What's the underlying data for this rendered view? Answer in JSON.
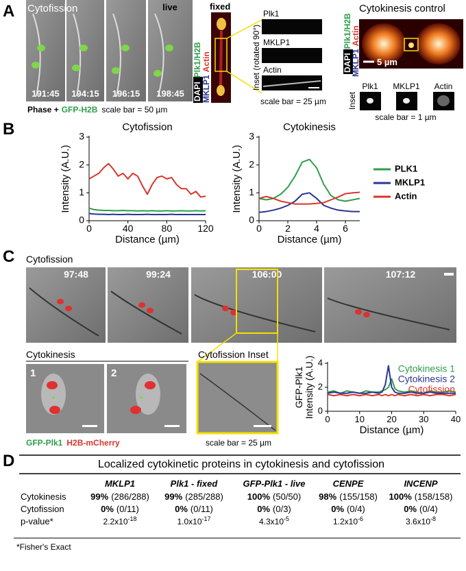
{
  "panel_a": {
    "letter": "A",
    "title": "Cytofission",
    "live": "live",
    "times": [
      "191:45",
      "194:15",
      "196:15",
      "198:45"
    ],
    "caption_phase": "Phase +",
    "caption_h2b": "GFP-H2B",
    "caption_scale": "scale bar = 50 µm",
    "fixed": "fixed",
    "stain": {
      "dapi": "DAPI",
      "plk1": "Plk1/H2B",
      "mklp1": "MKLP1",
      "actin": "Actin"
    },
    "inset_title": "Inset (rotated 90°)",
    "inset_labels": [
      "Plk1",
      "MKLP1",
      "Actin"
    ],
    "inset_scale": "scale bar = 25 µm",
    "control_title": "Cytokinesis control",
    "control_stain": {
      "dapi": "DAPI",
      "plk1": "Plk1/H2B",
      "mklp1": "MKLP1",
      "actin": "Actin"
    },
    "control_scale": "5 µm",
    "control_inset": "Inset",
    "control_inset_labels": [
      "Plk1",
      "MKLP1",
      "Actin"
    ],
    "control_inset_scale": "scale bar = 1 µm"
  },
  "panel_b": {
    "letter": "B"
  },
  "chart_data": [
    {
      "type": "line",
      "title": "Cytofission",
      "xlabel": "Distance (µm)",
      "ylabel": "Intensity (A.U.)",
      "x": [
        0,
        5,
        10,
        15,
        20,
        25,
        30,
        35,
        40,
        45,
        50,
        55,
        60,
        65,
        70,
        75,
        80,
        85,
        90,
        95,
        100,
        105,
        110,
        115,
        120
      ],
      "xlim": [
        0,
        120
      ],
      "xticks": [
        0,
        40,
        80,
        120
      ],
      "ylim": [
        0,
        3
      ],
      "yticks": [
        0,
        1,
        2,
        3
      ],
      "series": [
        {
          "color": "#2e9e4a",
          "values": [
            0.45,
            0.4,
            0.38,
            0.37,
            0.37,
            0.36,
            0.36,
            0.37,
            0.36,
            0.36,
            0.35,
            0.36,
            0.35,
            0.36,
            0.35,
            0.35,
            0.36,
            0.35,
            0.35,
            0.36,
            0.35,
            0.35,
            0.36,
            0.35,
            0.36
          ]
        },
        {
          "color": "#2a3590",
          "values": [
            0.26,
            0.24,
            0.23,
            0.23,
            0.22,
            0.23,
            0.22,
            0.22,
            0.23,
            0.22,
            0.22,
            0.22,
            0.23,
            0.22,
            0.22,
            0.22,
            0.22,
            0.23,
            0.22,
            0.22,
            0.22,
            0.22,
            0.22,
            0.22,
            0.22
          ]
        },
        {
          "color": "#d9342b",
          "values": [
            1.5,
            1.6,
            1.7,
            1.9,
            2.05,
            1.85,
            1.6,
            1.7,
            1.5,
            1.7,
            1.6,
            1.25,
            0.95,
            1.3,
            1.55,
            1.6,
            1.5,
            1.55,
            1.3,
            1.15,
            1.15,
            0.95,
            1.05,
            0.85,
            0.88
          ]
        }
      ]
    },
    {
      "type": "line",
      "title": "Cytokinesis",
      "xlabel": "Distance (µm)",
      "ylabel": "Intensity (A.U.)",
      "x": [
        0,
        0.5,
        1,
        1.5,
        2,
        2.5,
        3,
        3.5,
        4,
        4.5,
        5,
        5.5,
        6,
        6.5,
        7
      ],
      "xlim": [
        0,
        7
      ],
      "xticks": [
        0,
        2,
        4,
        6
      ],
      "ylim": [
        0,
        3
      ],
      "yticks": [
        0,
        1,
        2,
        3
      ],
      "series": [
        {
          "name": "PLK1",
          "color": "#2e9e4a",
          "values": [
            0.8,
            0.75,
            0.8,
            0.95,
            1.2,
            1.6,
            2.1,
            2.2,
            1.9,
            1.3,
            0.9,
            0.75,
            0.7,
            0.75,
            0.8
          ]
        },
        {
          "name": "MKLP1",
          "color": "#2a3590",
          "values": [
            0.3,
            0.33,
            0.38,
            0.45,
            0.55,
            0.7,
            0.95,
            1.0,
            0.8,
            0.55,
            0.45,
            0.38,
            0.35,
            0.33,
            0.33
          ]
        },
        {
          "name": "Actin",
          "color": "#d9342b",
          "values": [
            0.8,
            0.87,
            0.8,
            0.7,
            0.65,
            0.6,
            0.6,
            0.6,
            0.62,
            0.65,
            0.75,
            0.85,
            0.97,
            1.0,
            1.02
          ]
        }
      ]
    },
    {
      "type": "line",
      "xlabel": "Distance (µm)",
      "ylabel": [
        "GFP-Plk1",
        "Intensity (A.U.)"
      ],
      "x": [
        0,
        2,
        4,
        6,
        8,
        10,
        12,
        14,
        16,
        17,
        18,
        19,
        20,
        21,
        22,
        24,
        26,
        28,
        30,
        32,
        34,
        36,
        38,
        40
      ],
      "xlim": [
        0,
        40
      ],
      "xticks": [
        0,
        10,
        20,
        30,
        40
      ],
      "ylim": [
        0,
        4
      ],
      "yticks": [
        0,
        2,
        4
      ],
      "series": [
        {
          "name": "Cytokinesis 1",
          "color": "#2e9e4a",
          "values": [
            1.6,
            1.7,
            1.5,
            1.7,
            1.6,
            1.5,
            1.7,
            1.6,
            1.6,
            1.7,
            1.8,
            2.0,
            2.7,
            1.9,
            1.7,
            1.6,
            1.7,
            1.6,
            1.5,
            1.7,
            1.6,
            1.6,
            1.7,
            1.6
          ]
        },
        {
          "name": "Cytokinesis 2",
          "color": "#2a3590",
          "values": [
            1.5,
            1.6,
            1.5,
            1.5,
            1.6,
            1.5,
            1.5,
            1.6,
            1.5,
            1.6,
            2.2,
            3.8,
            2.0,
            1.6,
            1.5,
            1.5,
            1.6,
            1.5,
            1.5,
            1.6,
            1.5,
            1.5,
            1.5,
            1.5
          ]
        },
        {
          "name": "Cytofission",
          "color": "#d9342b",
          "values": [
            1.4,
            1.3,
            1.4,
            1.3,
            1.4,
            1.3,
            1.4,
            1.3,
            1.4,
            1.3,
            1.4,
            1.3,
            1.4,
            1.3,
            1.4,
            1.3,
            1.4,
            1.3,
            1.4,
            1.3,
            1.4,
            1.4,
            1.3,
            1.4
          ]
        }
      ]
    }
  ],
  "panel_c": {
    "letter": "C",
    "cytofission": "Cytofission",
    "times": [
      "97:48",
      "99:24",
      "106:00",
      "107:12"
    ],
    "cytokinesis": "Cytokinesis",
    "cell_numbers": [
      "1",
      "2"
    ],
    "inset_title": "Cytofission Inset",
    "label_plk1": "GFP-Plk1",
    "label_h2b": "H2B-mCherry",
    "scale": "scale bar = 25 µm"
  },
  "panel_d": {
    "letter": "D",
    "title": "Localized cytokinetic proteins in cytokinesis and cytofission",
    "columns": [
      "MKLP1",
      "Plk1 - fixed",
      "GFP-Plk1 - live",
      "CENPE",
      "INCENP"
    ],
    "rows": [
      {
        "label": "Cytokinesis",
        "cells": [
          {
            "percent": "99%",
            "count": "(286/288)"
          },
          {
            "percent": "99%",
            "count": "(285/288)"
          },
          {
            "percent": "100%",
            "count": "(50/50)"
          },
          {
            "percent": "98%",
            "count": "(155/158)"
          },
          {
            "percent": "100%",
            "count": "(158/158)"
          }
        ]
      },
      {
        "label": "Cytofission",
        "cells": [
          {
            "percent": "0%",
            "count": "(0/11)"
          },
          {
            "percent": "0%",
            "count": "(0/11)"
          },
          {
            "percent": "0%",
            "count": "(0/3)"
          },
          {
            "percent": "0%",
            "count": "(0/4)"
          },
          {
            "percent": "0%",
            "count": "(0/4)"
          }
        ]
      },
      {
        "label": "p-value*",
        "cells": [
          {
            "base": "2.2x10",
            "exponent": "-18"
          },
          {
            "base": "1.0x10",
            "exponent": "-17"
          },
          {
            "base": "4.3x10",
            "exponent": "-5"
          },
          {
            "base": "1.2x10",
            "exponent": "-6"
          },
          {
            "base": "3.6x10",
            "exponent": "-8"
          }
        ]
      }
    ],
    "footnote": "*Fisher's Exact"
  }
}
